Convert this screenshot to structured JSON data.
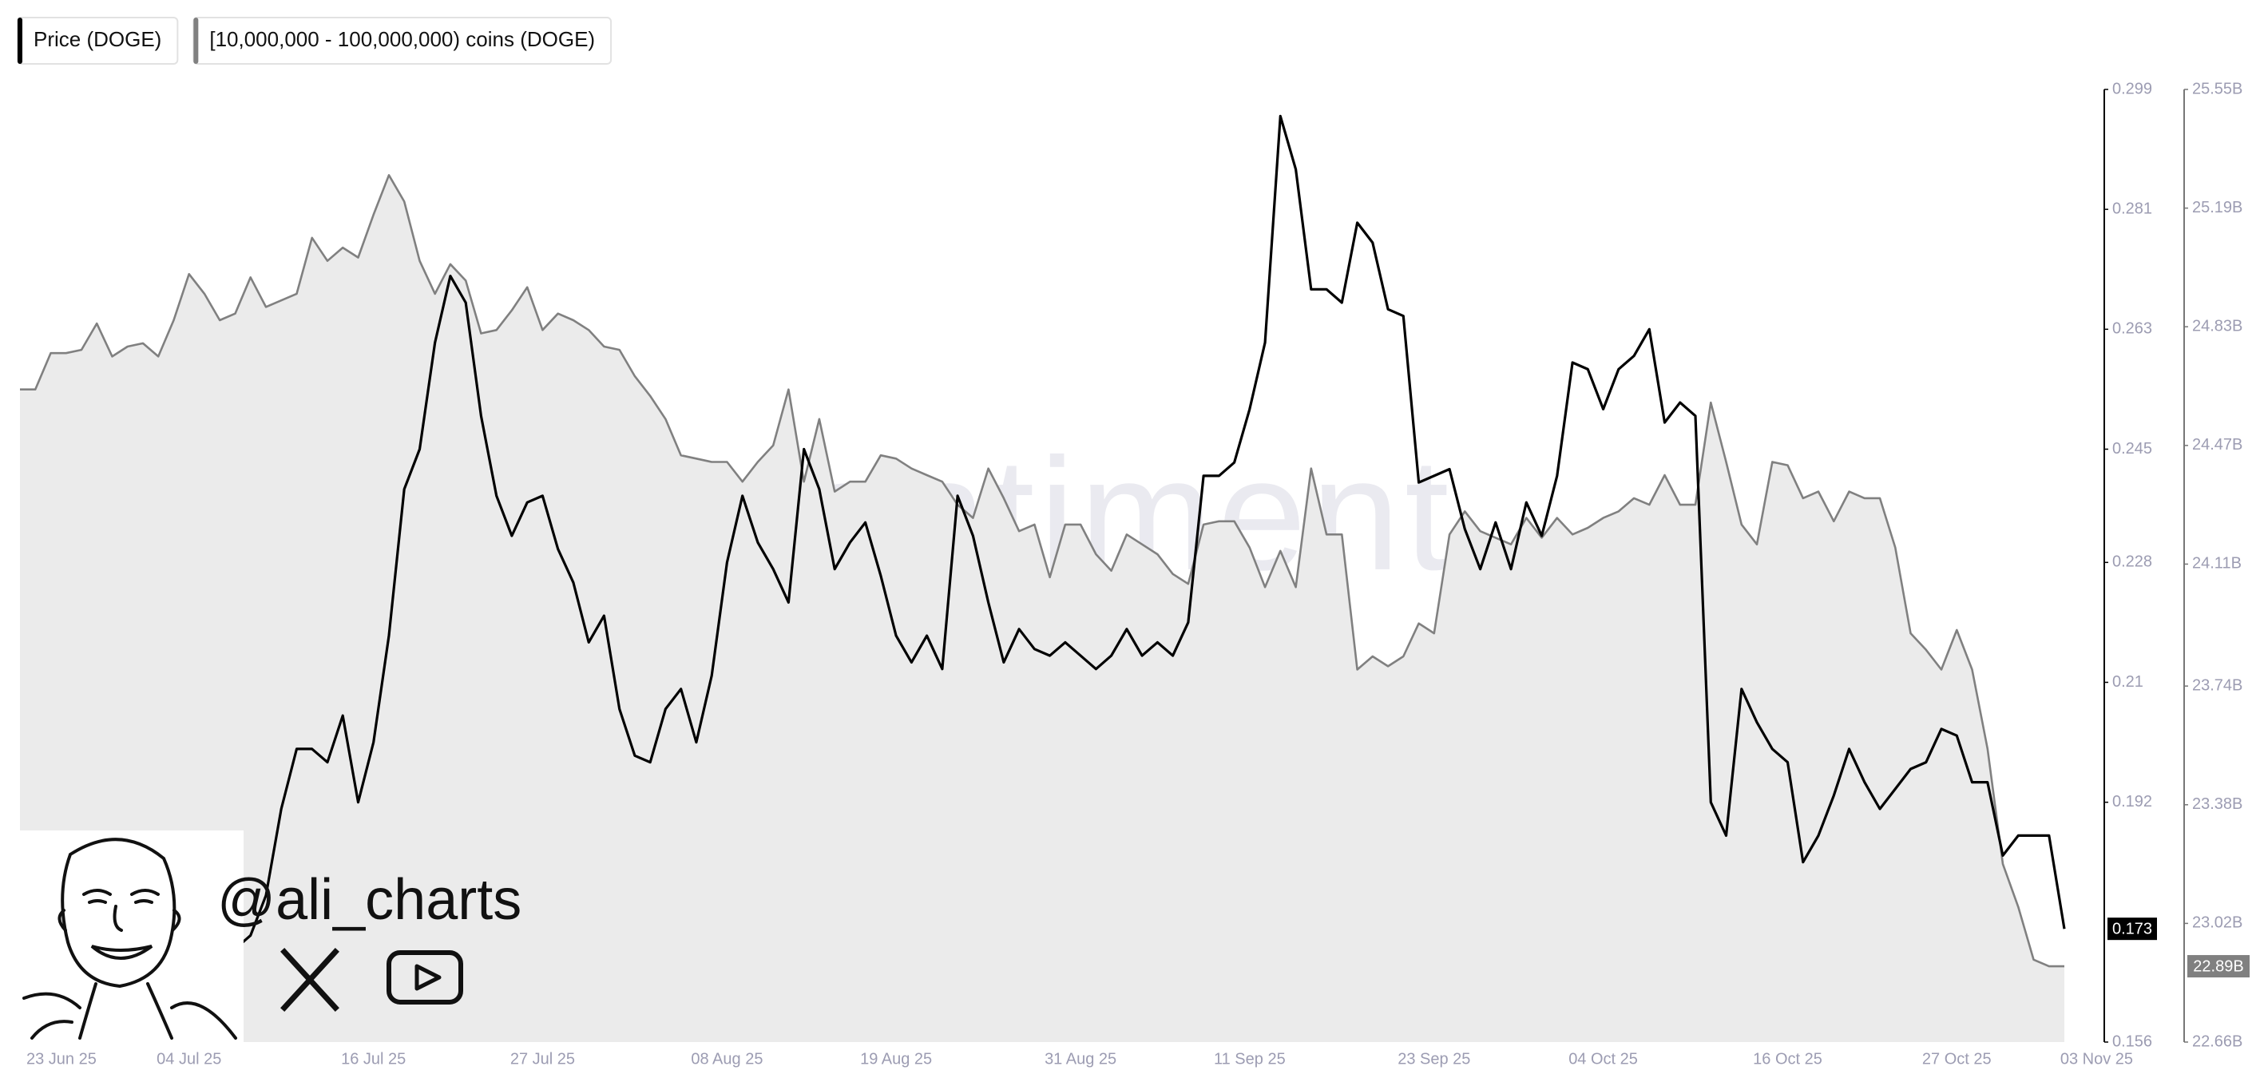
{
  "chart_data": {
    "type": "line",
    "watermark": "santiment",
    "annotation": "@ali_charts",
    "categories": [
      "23 Jun 25",
      null,
      null,
      null,
      null,
      null,
      null,
      null,
      null,
      null,
      null,
      "04 Jul 25",
      null,
      null,
      null,
      null,
      null,
      null,
      null,
      null,
      null,
      null,
      null,
      "16 Jul 25",
      null,
      null,
      null,
      null,
      null,
      null,
      null,
      null,
      null,
      null,
      "27 Jul 25",
      null,
      null,
      null,
      null,
      null,
      null,
      null,
      null,
      null,
      null,
      null,
      "08 Aug 25",
      null,
      null,
      null,
      null,
      null,
      null,
      null,
      null,
      null,
      null,
      "19 Aug 25",
      null,
      null,
      null,
      null,
      null,
      null,
      null,
      null,
      null,
      null,
      null,
      "31 Aug 25",
      null,
      null,
      null,
      null,
      null,
      null,
      null,
      null,
      null,
      null,
      "11 Sep 25",
      null,
      null,
      null,
      null,
      null,
      null,
      null,
      null,
      null,
      null,
      null,
      "23 Sep 25",
      null,
      null,
      null,
      null,
      null,
      null,
      null,
      null,
      null,
      null,
      "04 Oct 25",
      null,
      null,
      null,
      null,
      null,
      null,
      null,
      null,
      null,
      null,
      null,
      "16 Oct 25",
      null,
      null,
      null,
      null,
      null,
      null,
      null,
      null,
      null,
      null,
      "27 Oct 25",
      null,
      null,
      null,
      null,
      null,
      null,
      "03 Nov 25"
    ],
    "series": [
      {
        "name": "Price (DOGE)",
        "color": "#000000",
        "axis": "y",
        "label_last": true,
        "values": [
          0.161,
          0.16,
          0.162,
          0.163,
          0.161,
          0.164,
          0.163,
          0.165,
          0.166,
          0.165,
          0.163,
          0.164,
          0.165,
          0.168,
          0.17,
          0.172,
          0.178,
          0.191,
          0.2,
          0.2,
          0.198,
          0.205,
          0.192,
          0.201,
          0.217,
          0.239,
          0.245,
          0.261,
          0.271,
          0.267,
          0.25,
          0.238,
          0.232,
          0.237,
          0.238,
          0.23,
          0.225,
          0.216,
          0.22,
          0.206,
          0.199,
          0.198,
          0.206,
          0.209,
          0.201,
          0.211,
          0.228,
          0.238,
          0.231,
          0.227,
          0.222,
          0.245,
          0.239,
          0.227,
          0.231,
          0.234,
          0.226,
          0.217,
          0.213,
          0.217,
          0.212,
          0.238,
          0.232,
          0.222,
          0.213,
          0.218,
          0.215,
          0.214,
          0.216,
          0.214,
          0.212,
          0.214,
          0.218,
          0.214,
          0.216,
          0.214,
          0.219,
          0.241,
          0.241,
          0.243,
          0.251,
          0.261,
          0.295,
          0.287,
          0.269,
          0.269,
          0.267,
          0.279,
          0.276,
          0.266,
          0.265,
          0.24,
          0.241,
          0.242,
          0.233,
          0.227,
          0.234,
          0.227,
          0.237,
          0.232,
          0.241,
          0.258,
          0.257,
          0.251,
          0.257,
          0.259,
          0.263,
          0.249,
          0.252,
          0.25,
          0.192,
          0.187,
          0.209,
          0.204,
          0.2,
          0.198,
          0.183,
          0.187,
          0.193,
          0.2,
          0.195,
          0.191,
          0.194,
          0.197,
          0.198,
          0.203,
          0.202,
          0.195,
          0.195,
          0.184,
          0.187,
          0.187,
          0.187,
          0.173
        ]
      },
      {
        "name": "[10,000,000 - 100,000,000) coins (DOGE)",
        "color": "#808080",
        "fill": "#ebebeb",
        "axis": "y2",
        "label_last": true,
        "last_label": "22.89B",
        "values": [
          24.64,
          24.64,
          24.75,
          24.75,
          24.76,
          24.84,
          24.74,
          24.77,
          24.78,
          24.74,
          24.85,
          24.99,
          24.93,
          24.85,
          24.87,
          24.98,
          24.89,
          24.91,
          24.93,
          25.1,
          25.03,
          25.07,
          25.04,
          25.17,
          25.29,
          25.21,
          25.03,
          24.93,
          25.02,
          24.97,
          24.81,
          24.82,
          24.88,
          24.95,
          24.82,
          24.87,
          24.85,
          24.82,
          24.77,
          24.76,
          24.68,
          24.62,
          24.55,
          24.44,
          24.43,
          24.42,
          24.42,
          24.36,
          24.42,
          24.47,
          24.64,
          24.36,
          24.55,
          24.33,
          24.36,
          24.36,
          24.44,
          24.43,
          24.4,
          24.38,
          24.36,
          24.29,
          24.25,
          24.4,
          24.31,
          24.21,
          24.23,
          24.07,
          24.23,
          24.23,
          24.14,
          24.09,
          24.2,
          24.17,
          24.14,
          24.08,
          24.05,
          24.23,
          24.24,
          24.24,
          24.16,
          24.04,
          24.15,
          24.04,
          24.4,
          24.2,
          24.2,
          23.79,
          23.83,
          23.8,
          23.83,
          23.93,
          23.9,
          24.2,
          24.27,
          24.21,
          24.19,
          24.17,
          24.25,
          24.19,
          24.25,
          24.2,
          24.22,
          24.25,
          24.27,
          24.31,
          24.29,
          24.38,
          24.29,
          24.29,
          24.6,
          24.42,
          24.23,
          24.17,
          24.42,
          24.41,
          24.31,
          24.33,
          24.24,
          24.33,
          24.31,
          24.31,
          24.16,
          23.9,
          23.85,
          23.79,
          23.91,
          23.79,
          23.55,
          23.2,
          23.07,
          22.91,
          22.89,
          22.89
        ]
      }
    ],
    "ylim": [
      0.156,
      0.299
    ],
    "yticks": [
      0.156,
      0.192,
      0.21,
      0.228,
      0.245,
      0.263,
      0.281,
      0.299
    ],
    "y2lim": [
      22.66,
      25.55
    ],
    "y2ticks": [
      {
        "value": 22.66,
        "label": "22.66B"
      },
      {
        "value": 23.02,
        "label": "23.02B"
      },
      {
        "value": 23.38,
        "label": "23.38B"
      },
      {
        "value": 23.74,
        "label": "23.74B"
      },
      {
        "value": 24.11,
        "label": "24.11B"
      },
      {
        "value": 24.47,
        "label": "24.47B"
      },
      {
        "value": 24.83,
        "label": "24.83B"
      },
      {
        "value": 25.19,
        "label": "25.19B"
      },
      {
        "value": 25.55,
        "label": "25.55B"
      }
    ],
    "grid": false
  }
}
